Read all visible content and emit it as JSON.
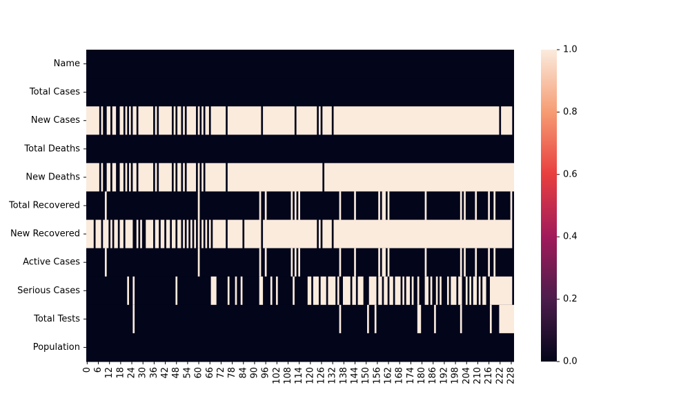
{
  "chart_data": {
    "type": "heatmap",
    "title": "",
    "xlabel": "",
    "ylabel": "",
    "row_count": 230,
    "rows": [
      "Name",
      "Total Cases",
      "New Cases",
      "Total Deaths",
      "New Deaths",
      "Total Recovered",
      "New Recovered",
      "Active Cases",
      "Serious Cases",
      "Total Tests",
      "Population"
    ],
    "x_ticks": [
      "0",
      "6",
      "12",
      "18",
      "24",
      "30",
      "36",
      "42",
      "48",
      "54",
      "60",
      "66",
      "72",
      "78",
      "84",
      "90",
      "96",
      "102",
      "108",
      "114",
      "120",
      "126",
      "132",
      "138",
      "144",
      "150",
      "156",
      "162",
      "168",
      "174",
      "180",
      "186",
      "192",
      "198",
      "204",
      "210",
      "216",
      "222",
      "228"
    ],
    "value_range": [
      0.0,
      1.0
    ],
    "colorbar_ticks": [
      "0.0",
      "0.2",
      "0.4",
      "0.6",
      "0.8",
      "1.0"
    ],
    "colormap": "rocket",
    "missing_values": {
      "Name": [],
      "Total Cases": [],
      "New Cases": [
        [
          0,
          6
        ],
        [
          8,
          8
        ],
        [
          11,
          12
        ],
        [
          14,
          15
        ],
        [
          18,
          19
        ],
        [
          21,
          21
        ],
        [
          23,
          23
        ],
        [
          25,
          26
        ],
        [
          28,
          35
        ],
        [
          37,
          37
        ],
        [
          39,
          45
        ],
        [
          47,
          47
        ],
        [
          49,
          50
        ],
        [
          52,
          52
        ],
        [
          54,
          58
        ],
        [
          60,
          60
        ],
        [
          62,
          62
        ],
        [
          64,
          65
        ],
        [
          67,
          74
        ],
        [
          76,
          93
        ],
        [
          95,
          111
        ],
        [
          113,
          123
        ],
        [
          125,
          125
        ],
        [
          127,
          131
        ],
        [
          133,
          221
        ],
        [
          223,
          228
        ]
      ],
      "Total Deaths": [],
      "New Deaths": [
        [
          0,
          6
        ],
        [
          8,
          8
        ],
        [
          11,
          12
        ],
        [
          14,
          15
        ],
        [
          18,
          19
        ],
        [
          21,
          21
        ],
        [
          23,
          23
        ],
        [
          25,
          26
        ],
        [
          28,
          35
        ],
        [
          37,
          37
        ],
        [
          39,
          45
        ],
        [
          47,
          47
        ],
        [
          49,
          50
        ],
        [
          52,
          52
        ],
        [
          54,
          58
        ],
        [
          60,
          60
        ],
        [
          62,
          62
        ],
        [
          64,
          74
        ],
        [
          76,
          126
        ],
        [
          128,
          229
        ]
      ],
      "Total Recovered": [
        [
          10,
          10
        ],
        [
          60,
          60
        ],
        [
          93,
          93
        ],
        [
          96,
          96
        ],
        [
          110,
          110
        ],
        [
          112,
          112
        ],
        [
          114,
          114
        ],
        [
          136,
          136
        ],
        [
          144,
          144
        ],
        [
          157,
          157
        ],
        [
          159,
          160
        ],
        [
          162,
          162
        ],
        [
          182,
          182
        ],
        [
          201,
          201
        ],
        [
          203,
          203
        ],
        [
          209,
          209
        ],
        [
          216,
          216
        ],
        [
          219,
          219
        ],
        [
          228,
          228
        ]
      ],
      "New Recovered": [
        [
          0,
          3
        ],
        [
          5,
          7
        ],
        [
          9,
          11
        ],
        [
          13,
          13
        ],
        [
          15,
          16
        ],
        [
          18,
          19
        ],
        [
          21,
          24
        ],
        [
          27,
          27
        ],
        [
          29,
          29
        ],
        [
          32,
          35
        ],
        [
          37,
          38
        ],
        [
          40,
          41
        ],
        [
          43,
          44
        ],
        [
          46,
          47
        ],
        [
          49,
          50
        ],
        [
          52,
          52
        ],
        [
          54,
          54
        ],
        [
          56,
          56
        ],
        [
          58,
          58
        ],
        [
          60,
          60
        ],
        [
          62,
          62
        ],
        [
          64,
          64
        ],
        [
          66,
          66
        ],
        [
          68,
          74
        ],
        [
          76,
          83
        ],
        [
          85,
          93
        ],
        [
          95,
          123
        ],
        [
          125,
          125
        ],
        [
          127,
          131
        ],
        [
          133,
          228
        ]
      ],
      "Active Cases": [
        [
          10,
          10
        ],
        [
          60,
          60
        ],
        [
          93,
          93
        ],
        [
          96,
          96
        ],
        [
          110,
          110
        ],
        [
          112,
          112
        ],
        [
          114,
          114
        ],
        [
          136,
          136
        ],
        [
          144,
          144
        ],
        [
          157,
          157
        ],
        [
          159,
          160
        ],
        [
          162,
          162
        ],
        [
          182,
          182
        ],
        [
          201,
          201
        ],
        [
          203,
          203
        ],
        [
          209,
          209
        ],
        [
          216,
          216
        ],
        [
          219,
          219
        ]
      ],
      "Serious Cases": [
        [
          22,
          22
        ],
        [
          25,
          25
        ],
        [
          48,
          48
        ],
        [
          67,
          69
        ],
        [
          76,
          76
        ],
        [
          80,
          80
        ],
        [
          83,
          83
        ],
        [
          93,
          94
        ],
        [
          99,
          99
        ],
        [
          102,
          102
        ],
        [
          111,
          111
        ],
        [
          119,
          120
        ],
        [
          122,
          124
        ],
        [
          126,
          128
        ],
        [
          130,
          133
        ],
        [
          135,
          135
        ],
        [
          138,
          141
        ],
        [
          143,
          144
        ],
        [
          146,
          148
        ],
        [
          152,
          155
        ],
        [
          157,
          158
        ],
        [
          160,
          161
        ],
        [
          163,
          164
        ],
        [
          166,
          168
        ],
        [
          170,
          170
        ],
        [
          172,
          173
        ],
        [
          175,
          175
        ],
        [
          178,
          178
        ],
        [
          182,
          183
        ],
        [
          185,
          185
        ],
        [
          188,
          188
        ],
        [
          190,
          190
        ],
        [
          194,
          194
        ],
        [
          196,
          198
        ],
        [
          200,
          201
        ],
        [
          204,
          204
        ],
        [
          206,
          206
        ],
        [
          208,
          209
        ],
        [
          211,
          211
        ],
        [
          213,
          214
        ],
        [
          217,
          228
        ]
      ],
      "Total Tests": [
        [
          25,
          25
        ],
        [
          136,
          136
        ],
        [
          151,
          151
        ],
        [
          155,
          155
        ],
        [
          178,
          179
        ],
        [
          187,
          187
        ],
        [
          201,
          201
        ],
        [
          217,
          217
        ],
        [
          222,
          229
        ]
      ],
      "Population": []
    },
    "colors": {
      "missing": "#faebdd",
      "present": "#03051a",
      "colorbar_stops": [
        "#03051a",
        "#4c1d4b",
        "#a11a5b",
        "#e83f3f",
        "#f69c73",
        "#faebdd"
      ]
    }
  }
}
